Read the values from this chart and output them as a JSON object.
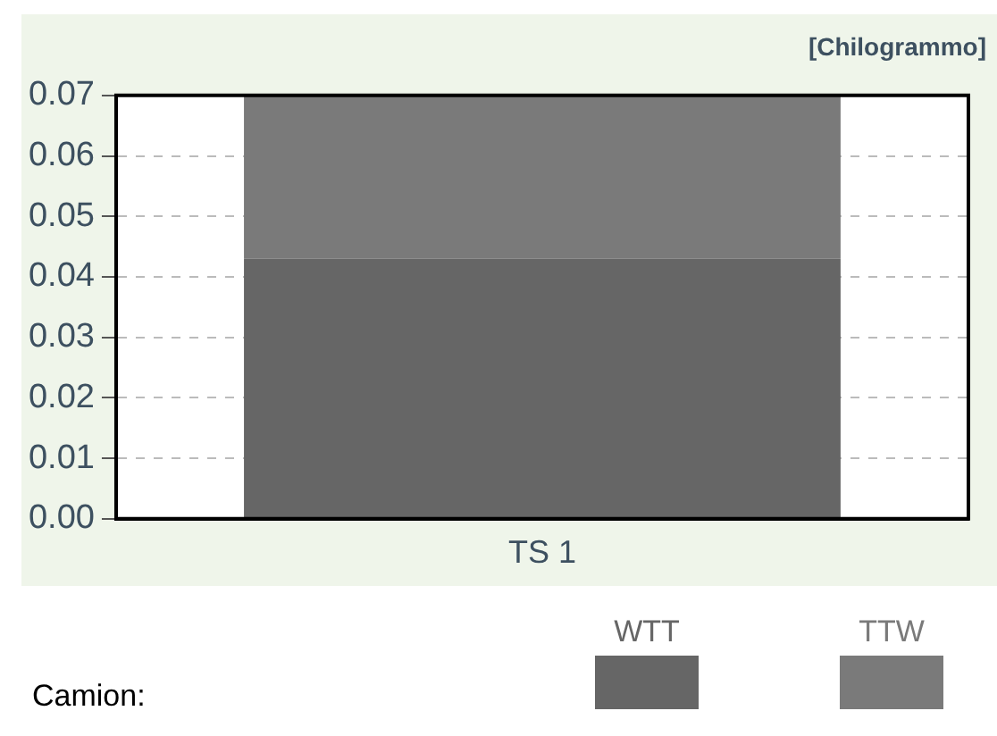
{
  "chart_data": {
    "type": "bar",
    "stacked": true,
    "ylabel": "[Chilogrammo]",
    "categories": [
      "TS 1"
    ],
    "series": [
      {
        "name": "WTT",
        "color": "#666666",
        "values": [
          0.043
        ]
      },
      {
        "name": "TTW",
        "color": "#7a7a7a",
        "values": [
          0.027
        ]
      }
    ],
    "ylim": [
      0,
      0.07
    ],
    "yticks": [
      {
        "value": 0,
        "label": "0.00"
      },
      0.01,
      0.02,
      0.03,
      0.04,
      0.05,
      0.06,
      0.07
    ],
    "grid": "y",
    "legend": "bottom",
    "legend_title": "Camion:"
  }
}
